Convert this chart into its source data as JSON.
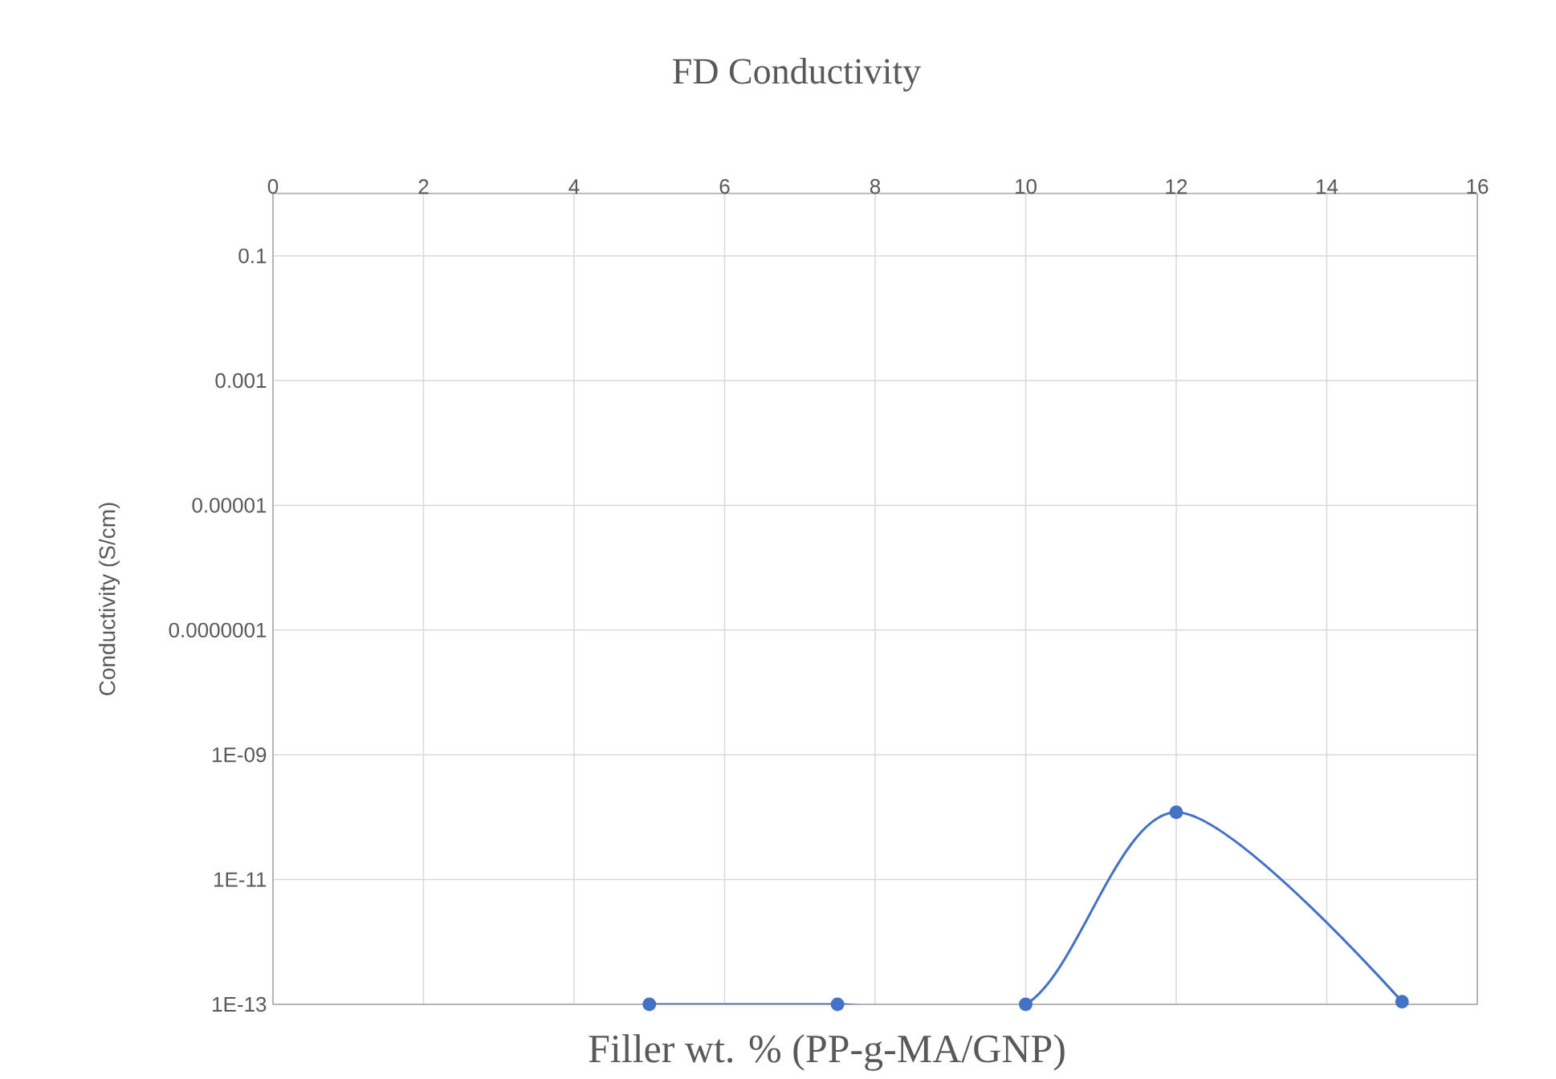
{
  "chart_data": {
    "type": "line",
    "title": "FD Conductivity",
    "xlabel": "Filler wt. % (PP-g-MA/GNP)",
    "ylabel": "Conductivity (S/cm)",
    "x": [
      5,
      7.5,
      10,
      12,
      15
    ],
    "series": [
      {
        "color": "#4472c4",
        "values": [
          1e-13,
          1e-13,
          1e-13,
          1.2e-10,
          1.1e-13
        ]
      }
    ],
    "xlim": [
      0,
      16
    ],
    "xticks": [
      0,
      2,
      4,
      6,
      8,
      10,
      12,
      14,
      16
    ],
    "ylim": [
      1e-13,
      1
    ],
    "log": "y",
    "yticks": [
      {
        "value": 1e-13,
        "label": "1E-13"
      },
      {
        "value": 1e-11,
        "label": "1E-11"
      },
      {
        "value": 1e-09,
        "label": "1E-09"
      },
      {
        "value": 1e-07,
        "label": "0.0000001"
      },
      {
        "value": 1e-05,
        "label": "0.00001"
      },
      {
        "value": 0.001,
        "label": "0.001"
      },
      {
        "value": 0.1,
        "label": "0.1"
      }
    ],
    "grid": true,
    "marker": "circle",
    "line_style": "solid"
  }
}
